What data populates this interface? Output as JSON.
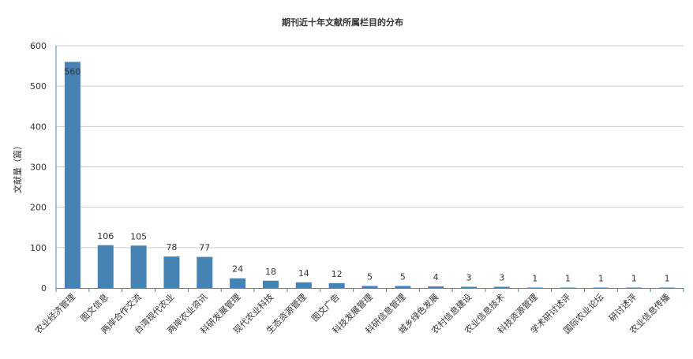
{
  "chart_data": {
    "type": "bar",
    "title": "期刊近十年文献所属栏目的分布",
    "xlabel": "",
    "ylabel": "文献量（篇）",
    "ylim": [
      0,
      600
    ],
    "yticks": [
      0,
      100,
      200,
      300,
      400,
      500,
      600
    ],
    "grid": true,
    "bar_color": "#4682b4",
    "axis_color": "#3c8dbc",
    "categories": [
      "农业经济管理",
      "图文信息",
      "两岸合作交流",
      "台湾现代农业",
      "两岸农业资讯",
      "科研发展管理",
      "现代农业科技",
      "生态资源管理",
      "图文广告",
      "科技发展管理",
      "科研信息管理",
      "城乡绿色发展",
      "农村信息建设",
      "农业信息技术",
      "科技资源管理",
      "学术研讨述评",
      "国际农业论坛",
      "研讨述评",
      "农业信息传播"
    ],
    "values": [
      560,
      106,
      105,
      78,
      77,
      24,
      18,
      14,
      12,
      5,
      5,
      4,
      3,
      3,
      1,
      1,
      1,
      1,
      1
    ]
  }
}
